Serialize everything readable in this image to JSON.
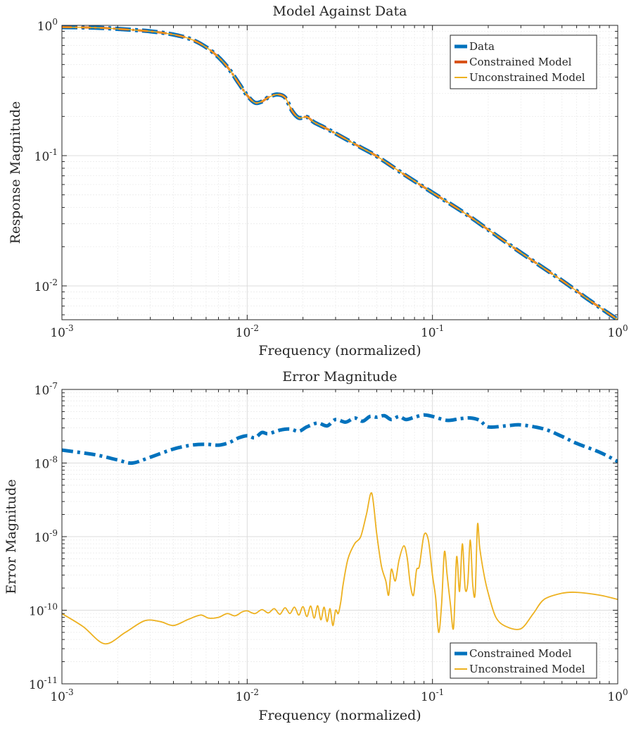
{
  "chart_data": [
    {
      "type": "line",
      "title": "Model Against Data",
      "xlabel": "Frequency (normalized)",
      "ylabel": "Response Magnitude",
      "xscale": "log",
      "yscale": "log",
      "xlim": [
        0.001,
        1
      ],
      "ylim": [
        0.0055,
        1
      ],
      "xticks": [
        {
          "base": "10",
          "exp": "-3"
        },
        {
          "base": "10",
          "exp": "-2"
        },
        {
          "base": "10",
          "exp": "-1"
        },
        {
          "base": "10",
          "exp": "0"
        }
      ],
      "yticks": [
        {
          "base": "10",
          "exp": "-2",
          "value": 0.01
        },
        {
          "base": "10",
          "exp": "-1",
          "value": 0.1
        },
        {
          "base": "10",
          "exp": "0",
          "value": 1
        }
      ],
      "grid": true,
      "legend_position": "top-right",
      "series": [
        {
          "name": "Data",
          "color": "#0072BD",
          "style": "dash-dot",
          "x": [
            0.001,
            0.0015,
            0.002,
            0.003,
            0.004,
            0.005,
            0.006,
            0.007,
            0.008,
            0.009,
            0.01,
            0.011,
            0.012,
            0.013,
            0.0145,
            0.016,
            0.0175,
            0.019,
            0.021,
            0.023,
            0.026,
            0.03,
            0.04,
            0.05,
            0.07,
            0.1,
            0.15,
            0.2,
            0.3,
            0.5,
            0.7,
            1.0
          ],
          "y": [
            0.97,
            0.96,
            0.94,
            0.9,
            0.85,
            0.78,
            0.68,
            0.57,
            0.46,
            0.36,
            0.29,
            0.255,
            0.26,
            0.28,
            0.295,
            0.28,
            0.22,
            0.195,
            0.198,
            0.18,
            0.165,
            0.148,
            0.118,
            0.099,
            0.072,
            0.052,
            0.036,
            0.027,
            0.018,
            0.011,
            0.0078,
            0.0055
          ]
        },
        {
          "name": "Constrained Model",
          "color": "#D95319",
          "style": "dash-dot",
          "x": [
            0.001,
            0.0015,
            0.002,
            0.003,
            0.004,
            0.005,
            0.006,
            0.007,
            0.008,
            0.009,
            0.01,
            0.011,
            0.012,
            0.013,
            0.0145,
            0.016,
            0.0175,
            0.019,
            0.021,
            0.023,
            0.026,
            0.03,
            0.04,
            0.05,
            0.07,
            0.1,
            0.15,
            0.2,
            0.3,
            0.5,
            0.7,
            1.0
          ],
          "y": [
            0.97,
            0.96,
            0.94,
            0.9,
            0.85,
            0.78,
            0.68,
            0.57,
            0.46,
            0.36,
            0.29,
            0.255,
            0.26,
            0.28,
            0.295,
            0.28,
            0.22,
            0.195,
            0.198,
            0.18,
            0.165,
            0.148,
            0.118,
            0.099,
            0.072,
            0.052,
            0.036,
            0.027,
            0.018,
            0.011,
            0.0078,
            0.0055
          ]
        },
        {
          "name": "Unconstrained Model",
          "color": "#EDB120",
          "style": "solid",
          "x": [
            0.001,
            0.0015,
            0.002,
            0.003,
            0.004,
            0.005,
            0.006,
            0.007,
            0.008,
            0.009,
            0.01,
            0.011,
            0.012,
            0.013,
            0.0145,
            0.016,
            0.0175,
            0.019,
            0.021,
            0.023,
            0.026,
            0.03,
            0.04,
            0.05,
            0.07,
            0.1,
            0.15,
            0.2,
            0.3,
            0.5,
            0.7,
            1.0
          ],
          "y": [
            0.97,
            0.96,
            0.94,
            0.9,
            0.85,
            0.78,
            0.68,
            0.57,
            0.46,
            0.36,
            0.29,
            0.255,
            0.26,
            0.28,
            0.295,
            0.28,
            0.22,
            0.195,
            0.198,
            0.18,
            0.165,
            0.148,
            0.118,
            0.099,
            0.072,
            0.052,
            0.036,
            0.027,
            0.018,
            0.011,
            0.0078,
            0.0055
          ]
        }
      ]
    },
    {
      "type": "line",
      "title": "Error Magnitude",
      "xlabel": "Frequency (normalized)",
      "ylabel": "Error Magnitude",
      "xscale": "log",
      "yscale": "log",
      "xlim": [
        0.001,
        1
      ],
      "ylim": [
        1e-11,
        1e-07
      ],
      "xticks": [
        {
          "base": "10",
          "exp": "-3"
        },
        {
          "base": "10",
          "exp": "-2"
        },
        {
          "base": "10",
          "exp": "-1"
        },
        {
          "base": "10",
          "exp": "0"
        }
      ],
      "yticks": [
        {
          "base": "10",
          "exp": "-11",
          "value": 1e-11
        },
        {
          "base": "10",
          "exp": "-10",
          "value": 1e-10
        },
        {
          "base": "10",
          "exp": "-9",
          "value": 1e-09
        },
        {
          "base": "10",
          "exp": "-8",
          "value": 1e-08
        },
        {
          "base": "10",
          "exp": "-7",
          "value": 1e-07
        }
      ],
      "grid": true,
      "legend_position": "bottom-right",
      "series": [
        {
          "name": "Constrained Model",
          "color": "#0072BD",
          "style": "dash-dot",
          "x": [
            0.001,
            0.0015,
            0.002,
            0.0024,
            0.003,
            0.004,
            0.005,
            0.006,
            0.007,
            0.008,
            0.009,
            0.01,
            0.011,
            0.012,
            0.013,
            0.015,
            0.017,
            0.019,
            0.021,
            0.024,
            0.027,
            0.03,
            0.034,
            0.038,
            0.042,
            0.046,
            0.05,
            0.055,
            0.06,
            0.066,
            0.072,
            0.08,
            0.09,
            0.1,
            0.12,
            0.14,
            0.16,
            0.18,
            0.2,
            0.25,
            0.3,
            0.4,
            0.5,
            0.6,
            0.8,
            1.0
          ],
          "y": [
            1.5e-08,
            1.3e-08,
            1.1e-08,
            1e-08,
            1.2e-08,
            1.55e-08,
            1.75e-08,
            1.8e-08,
            1.75e-08,
            1.9e-08,
            2.2e-08,
            2.35e-08,
            2.2e-08,
            2.6e-08,
            2.5e-08,
            2.8e-08,
            2.9e-08,
            2.7e-08,
            3.1e-08,
            3.5e-08,
            3.2e-08,
            3.9e-08,
            3.6e-08,
            4.1e-08,
            3.7e-08,
            4.3e-08,
            4.2e-08,
            4.4e-08,
            3.9e-08,
            4.3e-08,
            3.9e-08,
            4.2e-08,
            4.5e-08,
            4.3e-08,
            3.8e-08,
            4e-08,
            4.1e-08,
            3.8e-08,
            3.1e-08,
            3.2e-08,
            3.3e-08,
            2.9e-08,
            2.3e-08,
            1.85e-08,
            1.4e-08,
            1.05e-08
          ]
        },
        {
          "name": "Unconstrained Model",
          "color": "#EDB120",
          "style": "solid",
          "x": [
            0.001,
            0.0013,
            0.0017,
            0.0022,
            0.0028,
            0.0034,
            0.004,
            0.0048,
            0.0056,
            0.0062,
            0.007,
            0.0078,
            0.0086,
            0.0094,
            0.01,
            0.011,
            0.012,
            0.013,
            0.014,
            0.015,
            0.016,
            0.017,
            0.018,
            0.019,
            0.02,
            0.021,
            0.022,
            0.023,
            0.024,
            0.025,
            0.026,
            0.027,
            0.028,
            0.029,
            0.03,
            0.031,
            0.032,
            0.033,
            0.035,
            0.038,
            0.041,
            0.044,
            0.047,
            0.05,
            0.053,
            0.056,
            0.058,
            0.06,
            0.063,
            0.066,
            0.07,
            0.073,
            0.076,
            0.079,
            0.082,
            0.085,
            0.09,
            0.095,
            0.1,
            0.104,
            0.108,
            0.112,
            0.116,
            0.12,
            0.125,
            0.13,
            0.135,
            0.14,
            0.145,
            0.15,
            0.155,
            0.16,
            0.165,
            0.17,
            0.175,
            0.18,
            0.19,
            0.2,
            0.22,
            0.25,
            0.3,
            0.35,
            0.4,
            0.5,
            0.6,
            0.8,
            1.0
          ],
          "y": [
            9e-11,
            6e-11,
            3.5e-11,
            5e-11,
            7.2e-11,
            7e-11,
            6.2e-11,
            7.5e-11,
            8.6e-11,
            7.8e-11,
            8e-11,
            9e-11,
            8.4e-11,
            9.5e-11,
            9.8e-11,
            9e-11,
            1.02e-10,
            9.2e-11,
            1.05e-10,
            8.8e-11,
            1.08e-10,
            9e-11,
            1.1e-10,
            8.6e-11,
            1.12e-10,
            8.2e-11,
            1.14e-10,
            7.8e-11,
            1.15e-10,
            7.4e-11,
            1.1e-10,
            7e-11,
            1.05e-10,
            6.2e-11,
            1e-10,
            9e-11,
            1.3e-10,
            2.3e-10,
            5e-10,
            8e-10,
            1e-09,
            2e-09,
            3.9e-09,
            1.1e-09,
            4e-10,
            2.5e-10,
            1.6e-10,
            3.6e-10,
            2.5e-10,
            4.8e-10,
            7.5e-10,
            5.2e-10,
            2.2e-10,
            1.6e-10,
            3.5e-10,
            4e-10,
            1.05e-09,
            9e-10,
            3e-10,
            1.5e-10,
            5e-11,
            1.2e-10,
            6.2e-10,
            3e-10,
            1.2e-10,
            5.8e-11,
            5.3e-10,
            1.8e-10,
            8e-10,
            2e-10,
            2.3e-10,
            9e-10,
            2.2e-10,
            1.7e-10,
            1.45e-09,
            7e-10,
            3e-10,
            1.7e-10,
            8e-11,
            6e-11,
            5.6e-11,
            9e-11,
            1.4e-10,
            1.7e-10,
            1.75e-10,
            1.6e-10,
            1.4e-10
          ]
        }
      ]
    }
  ]
}
